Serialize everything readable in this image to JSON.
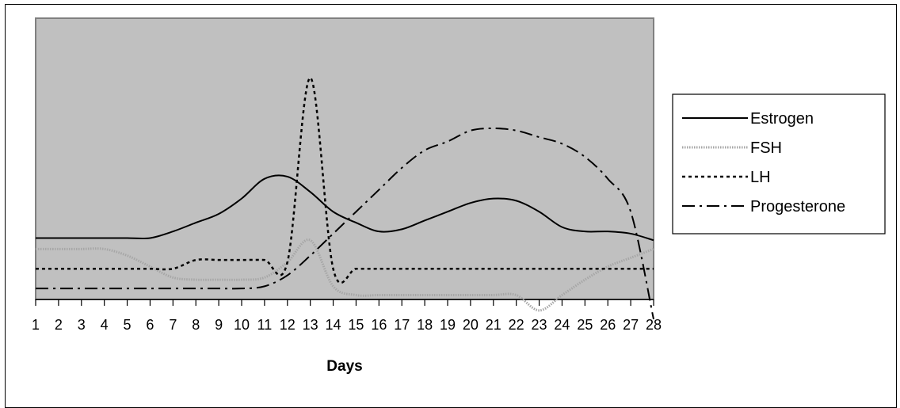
{
  "chart_data": {
    "type": "line",
    "title": "",
    "xlabel": "Days",
    "ylabel": "",
    "categories": [
      "1",
      "2",
      "3",
      "4",
      "5",
      "6",
      "7",
      "8",
      "9",
      "10",
      "11",
      "12",
      "13",
      "14",
      "15",
      "16",
      "17",
      "18",
      "19",
      "20",
      "21",
      "22",
      "23",
      "24",
      "25",
      "26",
      "27",
      "28"
    ],
    "ylim": [
      0,
      100
    ],
    "grid": false,
    "legend_position": "right",
    "plot_background": "#c0c0c0",
    "series": [
      {
        "name": "Estrogen",
        "style": "solid",
        "values": [
          28,
          28,
          28,
          28,
          28,
          28,
          31,
          35,
          39,
          46,
          55,
          56,
          49,
          40,
          35,
          31,
          32,
          36,
          40,
          44,
          46,
          45,
          40,
          33,
          31,
          31,
          30,
          27
        ]
      },
      {
        "name": "FSH",
        "style": "thick-dotted-gray",
        "values": [
          23,
          23,
          23,
          23,
          20,
          15,
          10,
          9,
          9,
          9,
          10,
          17,
          27,
          6,
          2,
          2,
          2,
          2,
          2,
          2,
          2,
          2,
          -5,
          2,
          9,
          15,
          19,
          23
        ]
      },
      {
        "name": "LH",
        "style": "dotted",
        "values": [
          14,
          14,
          14,
          14,
          14,
          14,
          14,
          18,
          18,
          18,
          18,
          17,
          101,
          14,
          14,
          14,
          14,
          14,
          14,
          14,
          14,
          14,
          14,
          14,
          14,
          14,
          14,
          14
        ]
      },
      {
        "name": "Progesterone",
        "style": "dash-dot",
        "values": [
          5,
          5,
          5,
          5,
          5,
          5,
          5,
          5,
          5,
          5,
          6,
          11,
          20,
          30,
          40,
          50,
          60,
          68,
          72,
          77,
          78,
          77,
          74,
          71,
          65,
          55,
          40,
          -9
        ]
      }
    ]
  }
}
